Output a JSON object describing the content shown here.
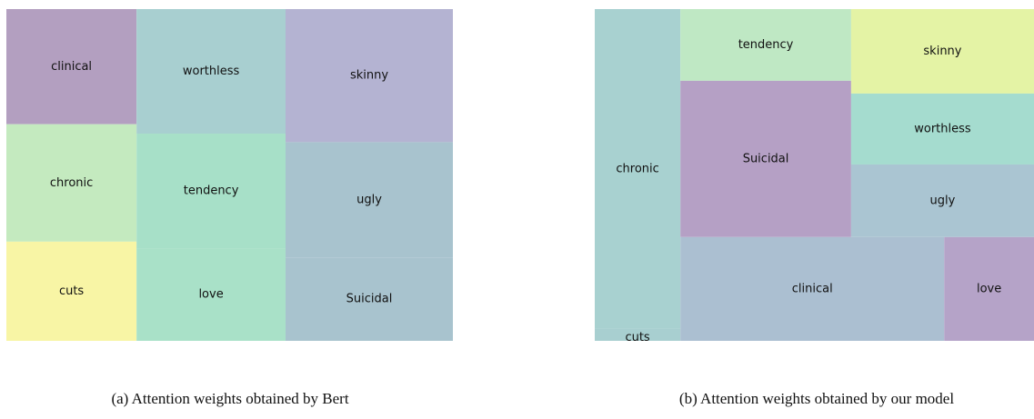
{
  "chart_data": [
    {
      "type": "treemap",
      "caption": "(a)  Attention weights obtained by Bert",
      "labels": [
        "clinical",
        "chronic",
        "cuts",
        "worthless",
        "tendency",
        "love",
        "skinny",
        "ugly",
        "Suicidal"
      ],
      "values": [
        10.1,
        10.3,
        8.7,
        12.5,
        11.5,
        9.3,
        15.0,
        13.0,
        9.4
      ],
      "colors": [
        "#b39fc0",
        "#c4eabf",
        "#f8f5a5",
        "#a8cfd0",
        "#a7e0c8",
        "#a9e1c8",
        "#b4b3d2",
        "#a8c3ce",
        "#a8c3ce"
      ]
    },
    {
      "type": "treemap",
      "caption": "(b)  Attention weights obtained by our model",
      "labels": [
        "chronic",
        "cuts",
        "tendency",
        "Suicidal",
        "skinny",
        "worthless",
        "ugly",
        "clinical",
        "love"
      ],
      "values": [
        18.8,
        0.7,
        8.4,
        18.3,
        10.6,
        8.9,
        9.1,
        18.8,
        6.4
      ],
      "colors": [
        "#a8d1d0",
        "#a8cfd0",
        "#bfe8c4",
        "#b5a0c5",
        "#e4f3a5",
        "#a5dccf",
        "#aac5d2",
        "#abbfd1",
        "#b5a3c8"
      ]
    }
  ]
}
